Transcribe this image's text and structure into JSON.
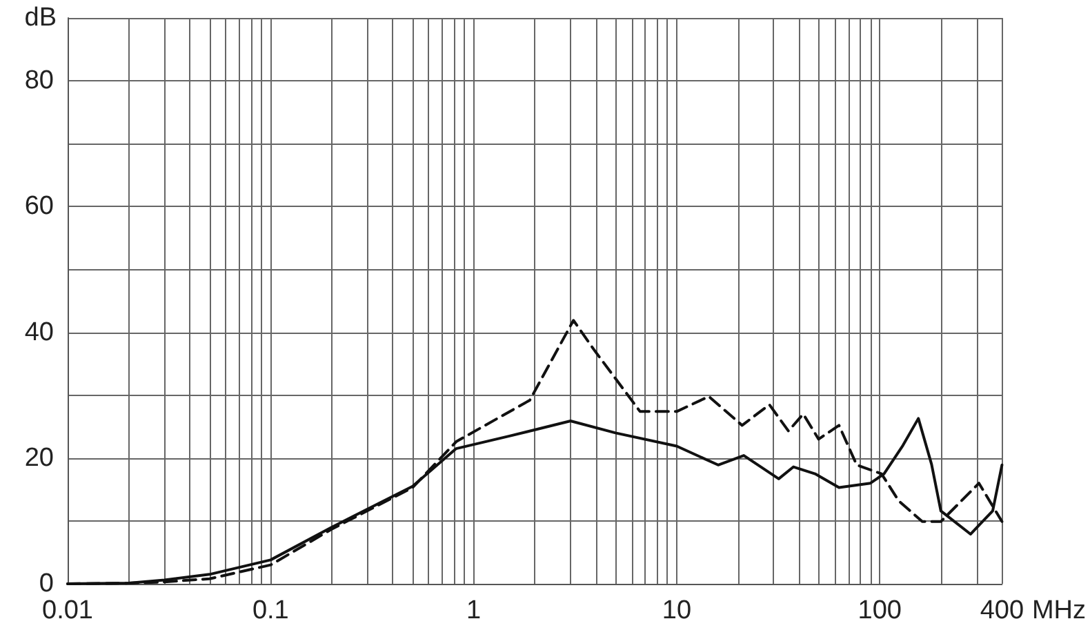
{
  "chart_data": {
    "type": "line",
    "xlabel": "MHz",
    "ylabel": "dB",
    "log": "x",
    "grid": true,
    "marker": "none",
    "xlim": [
      0.01,
      400
    ],
    "ylim": [
      0,
      90
    ],
    "xticks": [
      0.01,
      {
        "value": 0.02,
        "label": null
      },
      {
        "value": 0.03,
        "label": null
      },
      {
        "value": 0.04,
        "label": null
      },
      {
        "value": 0.05,
        "label": null
      },
      {
        "value": 0.06,
        "label": null
      },
      {
        "value": 0.07,
        "label": null
      },
      {
        "value": 0.08,
        "label": null
      },
      {
        "value": 0.09,
        "label": null
      },
      0.1,
      {
        "value": 0.2,
        "label": null
      },
      {
        "value": 0.3,
        "label": null
      },
      {
        "value": 0.4,
        "label": null
      },
      {
        "value": 0.5,
        "label": null
      },
      {
        "value": 0.6,
        "label": null
      },
      {
        "value": 0.7,
        "label": null
      },
      {
        "value": 0.8,
        "label": null
      },
      {
        "value": 0.9,
        "label": null
      },
      1,
      {
        "value": 2,
        "label": null
      },
      {
        "value": 3,
        "label": null
      },
      {
        "value": 4,
        "label": null
      },
      {
        "value": 5,
        "label": null
      },
      {
        "value": 6,
        "label": null
      },
      {
        "value": 7,
        "label": null
      },
      {
        "value": 8,
        "label": null
      },
      {
        "value": 9,
        "label": null
      },
      10,
      {
        "value": 20,
        "label": null
      },
      {
        "value": 30,
        "label": null
      },
      {
        "value": 40,
        "label": null
      },
      {
        "value": 50,
        "label": null
      },
      {
        "value": 60,
        "label": null
      },
      {
        "value": 70,
        "label": null
      },
      {
        "value": 80,
        "label": null
      },
      {
        "value": 90,
        "label": null
      },
      100,
      {
        "value": 200,
        "label": null
      },
      {
        "value": 300,
        "label": null
      },
      400
    ],
    "yticks": [
      0,
      {
        "value": 10,
        "label": null
      },
      20,
      {
        "value": 30,
        "label": null
      },
      40,
      {
        "value": 50,
        "label": null
      },
      60,
      {
        "value": 70,
        "label": null
      },
      80,
      {
        "value": 90,
        "label": null
      }
    ],
    "series": [
      {
        "color": "#111111",
        "line_style": "solid",
        "x": [
          0.01,
          0.02,
          0.03,
          0.05,
          0.1,
          0.2,
          0.5,
          0.82,
          1.5,
          3,
          5,
          10,
          16,
          21.4,
          31.8,
          37.6,
          48,
          63,
          90,
          105,
          130,
          155,
          180,
          200,
          280,
          360,
          400
        ],
        "values": [
          0,
          0.1,
          0.6,
          1.5,
          3.8,
          9,
          15.5,
          21.5,
          23.5,
          25.9,
          24,
          21.9,
          18.9,
          20.4,
          16.7,
          18.6,
          17.5,
          15.3,
          16,
          17.5,
          22,
          26.3,
          19,
          11.6,
          7.9,
          11.6,
          18.9
        ]
      },
      {
        "color": "#111111",
        "line_style": "dashed",
        "x": [
          0.01,
          0.02,
          0.03,
          0.05,
          0.1,
          0.2,
          0.5,
          0.82,
          1.89,
          3.1,
          3.9,
          6.6,
          10,
          14.4,
          21,
          28.6,
          35.5,
          42,
          50,
          63,
          77,
          102,
          124,
          162,
          200,
          308,
          400
        ],
        "values": [
          0,
          0.1,
          0.3,
          0.8,
          3,
          8.7,
          15.3,
          22.6,
          29.2,
          41.9,
          37.3,
          27.4,
          27.4,
          29.8,
          25.2,
          28.5,
          24.3,
          27,
          23,
          25.2,
          18.9,
          17.5,
          13.2,
          9.9,
          9.9,
          16,
          9.9
        ]
      }
    ]
  }
}
